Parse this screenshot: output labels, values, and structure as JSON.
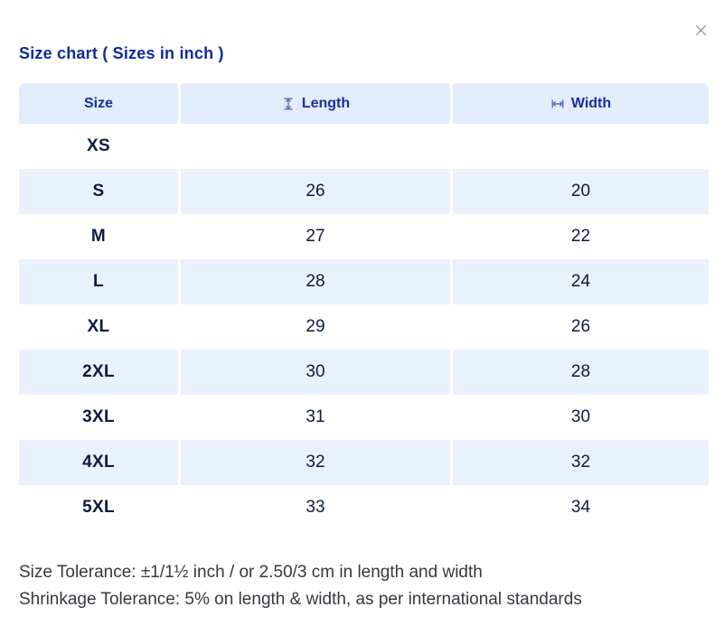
{
  "modal": {
    "title": "Size chart ( Sizes in inch )"
  },
  "table": {
    "columns": [
      {
        "label": "Size",
        "icon": ""
      },
      {
        "label": "Length",
        "icon": "length-measure-icon"
      },
      {
        "label": "Width",
        "icon": "width-measure-icon"
      }
    ],
    "rows": [
      {
        "size": "XS",
        "length": "",
        "width": ""
      },
      {
        "size": "S",
        "length": "26",
        "width": "20"
      },
      {
        "size": "M",
        "length": "27",
        "width": "22"
      },
      {
        "size": "L",
        "length": "28",
        "width": "24"
      },
      {
        "size": "XL",
        "length": "29",
        "width": "26"
      },
      {
        "size": "2XL",
        "length": "30",
        "width": "28"
      },
      {
        "size": "3XL",
        "length": "31",
        "width": "30"
      },
      {
        "size": "4XL",
        "length": "32",
        "width": "32"
      },
      {
        "size": "5XL",
        "length": "33",
        "width": "34"
      }
    ]
  },
  "footnotes": [
    "Size Tolerance: ±1/1½ inch / or 2.50/3 cm in length and width",
    "Shrinkage Tolerance: 5% on length & width, as per international standards"
  ],
  "colors": {
    "header_bg": "#e2ecfa",
    "stripe_bg": "#e9f1fc",
    "title_text": "#0e2b9d",
    "header_text": "#1c2e99",
    "cell_text": "#0d1b3e",
    "icon_blue": "#5f6fb5",
    "footnote_text": "#383840",
    "close_icon": "#9a9a9a"
  }
}
